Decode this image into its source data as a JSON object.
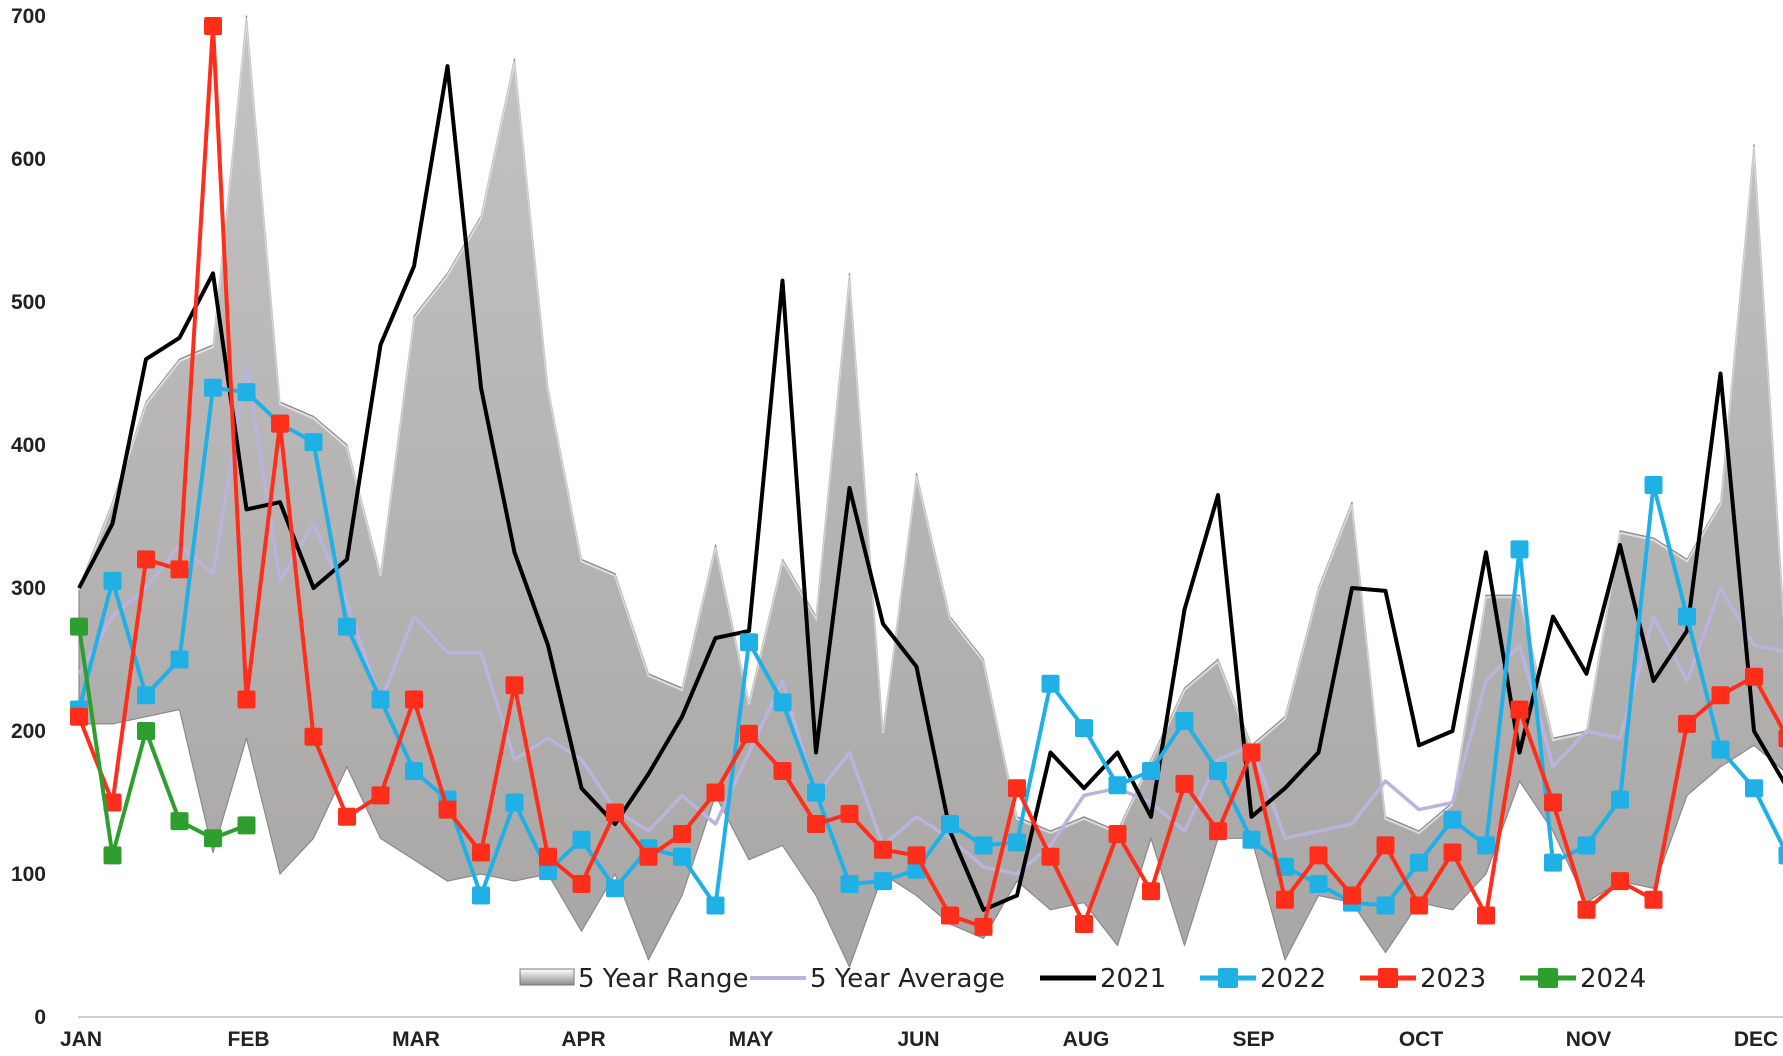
{
  "chart_data": {
    "type": "line",
    "ylim": [
      0,
      700
    ],
    "yticks": [
      "0",
      "100",
      "200",
      "300",
      "400",
      "500",
      "600",
      "700"
    ],
    "month_labels": [
      "JAN",
      "FEB",
      "MAR",
      "APR",
      "MAY",
      "JUN",
      "AUG",
      "SEP",
      "OCT",
      "NOV",
      "DEC"
    ],
    "month_weeks": [
      0,
      5,
      10,
      15,
      20,
      25,
      30,
      35,
      40,
      45,
      50
    ],
    "legend_placement": "bottom",
    "range": {
      "name": "5 Year Range",
      "low": [
        205,
        205,
        210,
        215,
        115,
        195,
        100,
        125,
        175,
        125,
        110,
        95,
        100,
        95,
        100,
        60,
        100,
        40,
        85,
        155,
        110,
        120,
        85,
        35,
        100,
        85,
        65,
        55,
        95,
        75,
        80,
        50,
        125,
        50,
        125,
        125,
        40,
        85,
        80,
        45,
        80,
        75,
        100,
        165,
        130,
        80,
        95,
        90,
        155,
        175,
        190,
        170,
        160,
        160
      ],
      "high": [
        300,
        360,
        430,
        460,
        470,
        700,
        430,
        420,
        400,
        310,
        490,
        520,
        560,
        670,
        440,
        320,
        310,
        240,
        230,
        330,
        220,
        320,
        280,
        520,
        200,
        380,
        280,
        250,
        140,
        130,
        140,
        130,
        180,
        230,
        250,
        190,
        210,
        300,
        360,
        140,
        130,
        150,
        295,
        295,
        195,
        200,
        340,
        335,
        320,
        360,
        610,
        240,
        490,
        610
      ]
    },
    "series": [
      {
        "name": "5 Year Average",
        "color": "#b9b4dd",
        "values": [
          240,
          280,
          300,
          330,
          310,
          455,
          305,
          345,
          290,
          220,
          280,
          255,
          255,
          180,
          195,
          180,
          145,
          130,
          155,
          135,
          185,
          235,
          155,
          185,
          120,
          140,
          125,
          105,
          100,
          120,
          155,
          160,
          150,
          130,
          180,
          190,
          125,
          130,
          135,
          165,
          145,
          150,
          235,
          260,
          175,
          200,
          195,
          280,
          235,
          300,
          260,
          255,
          250
        ]
      },
      {
        "name": "2021",
        "color": "#000000",
        "values": [
          300,
          345,
          460,
          475,
          520,
          355,
          360,
          300,
          320,
          470,
          525,
          665,
          440,
          325,
          260,
          160,
          135,
          170,
          210,
          265,
          270,
          515,
          185,
          370,
          275,
          245,
          130,
          75,
          85,
          185,
          160,
          185,
          140,
          285,
          365,
          140,
          160,
          185,
          300,
          298,
          190,
          200,
          325,
          185,
          280,
          240,
          330,
          235,
          270,
          450,
          200,
          160
        ]
      },
      {
        "name": "2022",
        "color": "#1fb1e6",
        "values": [
          215,
          305,
          225,
          250,
          440,
          437,
          415,
          402,
          273,
          222,
          172,
          152,
          85,
          150,
          102,
          124,
          90,
          118,
          112,
          78,
          262,
          220,
          157,
          93,
          95,
          103,
          135,
          120,
          122,
          233,
          202,
          162,
          172,
          207,
          172,
          124,
          105,
          93,
          80,
          78,
          108,
          138,
          120,
          327,
          108,
          120,
          152,
          372,
          280,
          187,
          160,
          113
        ]
      },
      {
        "name": "2023",
        "color": "#ff2e1a",
        "values": [
          210,
          150,
          320,
          313,
          693,
          222,
          415,
          196,
          140,
          155,
          222,
          145,
          115,
          232,
          112,
          93,
          143,
          112,
          128,
          157,
          198,
          172,
          135,
          142,
          117,
          113,
          71,
          63,
          160,
          112,
          65,
          128,
          88,
          163,
          130,
          185,
          82,
          113,
          85,
          120,
          78,
          115,
          71,
          215,
          150,
          75,
          95,
          82,
          205,
          225,
          238,
          195
        ]
      },
      {
        "name": "2024",
        "color": "#2e9e2e",
        "values": [
          273,
          113,
          200,
          137,
          125,
          134
        ]
      }
    ]
  }
}
